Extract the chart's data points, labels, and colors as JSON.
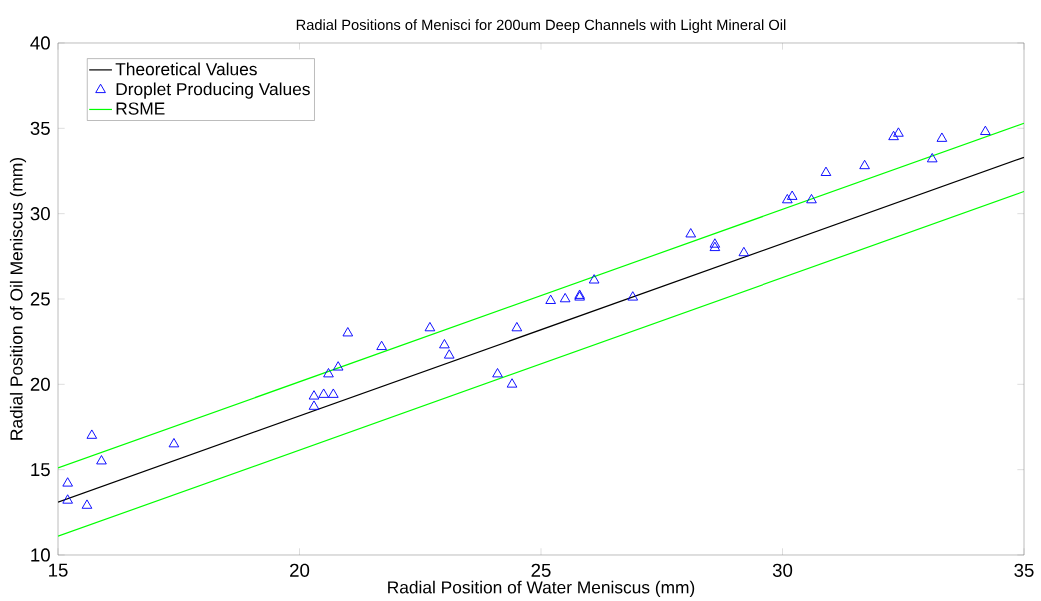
{
  "chart_data": {
    "type": "scatter",
    "title": "Radial Positions of Menisci for 200um Deep Channels with Light Mineral Oil",
    "xlabel": "Radial Position of Water Meniscus (mm)",
    "ylabel": "Radial Position of Oil Meniscus (mm)",
    "xlim": [
      15,
      35
    ],
    "ylim": [
      10,
      40
    ],
    "xticks": [
      15,
      20,
      25,
      30,
      35
    ],
    "yticks": [
      10,
      15,
      20,
      25,
      30,
      35,
      40
    ],
    "grid": false,
    "legend": "top left",
    "series": [
      {
        "name": "Theoretical Values",
        "type": "line",
        "color": "#000000",
        "marker": "none",
        "line_style": "solid",
        "x": [
          15,
          35
        ],
        "values": [
          13.1,
          33.3
        ]
      },
      {
        "name": "Droplet Producing Values",
        "color": "#0000ff",
        "marker": "triangle",
        "x": [
          15.2,
          15.2,
          15.6,
          15.7,
          15.9,
          17.4,
          20.3,
          20.3,
          20.5,
          20.7,
          20.6,
          20.8,
          21.0,
          21.7,
          22.7,
          23.0,
          23.1,
          24.1,
          24.4,
          24.5,
          25.2,
          25.5,
          25.8,
          25.8,
          26.1,
          26.9,
          28.1,
          28.6,
          28.6,
          29.2,
          30.1,
          30.2,
          30.6,
          30.9,
          31.7,
          32.3,
          32.4,
          33.1,
          33.3,
          34.2
        ],
        "values": [
          14.2,
          13.2,
          12.9,
          17.0,
          15.5,
          16.5,
          18.7,
          19.3,
          19.4,
          19.4,
          20.6,
          21.0,
          23.0,
          22.2,
          23.3,
          22.3,
          21.7,
          20.6,
          20.0,
          23.3,
          24.9,
          25.0,
          25.1,
          25.2,
          26.1,
          25.1,
          28.8,
          28.2,
          28.0,
          27.7,
          30.8,
          31.0,
          30.8,
          32.4,
          32.8,
          34.5,
          34.7,
          33.2,
          34.4,
          34.8
        ]
      },
      {
        "name": "RSME",
        "type": "line",
        "color": "#00ff00",
        "marker": "none",
        "line_style": "solid",
        "x": [
          15,
          35
        ],
        "values": [
          15.1,
          35.3
        ]
      },
      {
        "type": "line",
        "color": "#00ff00",
        "marker": "none",
        "line_style": "solid",
        "x": [
          15,
          35
        ],
        "values": [
          11.1,
          31.3
        ]
      }
    ]
  }
}
